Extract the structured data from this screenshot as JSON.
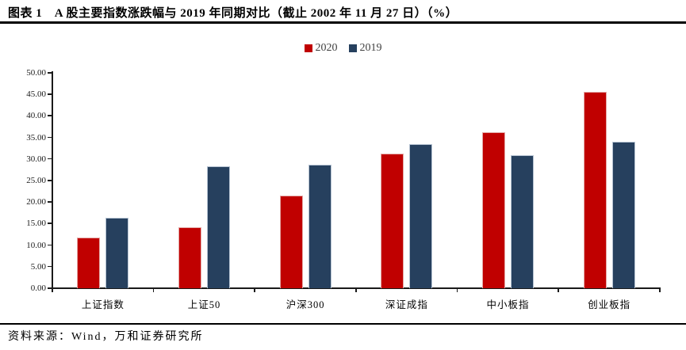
{
  "header": {
    "title": "图表 1　A 股主要指数涨跌幅与 2019 年同期对比（截止 2002 年 11 月 27 日）（%）"
  },
  "footer": {
    "source": "资料来源：Wind，万和证券研究所"
  },
  "chart_data": {
    "type": "bar",
    "title": "A股主要指数涨跌幅与2019年同期对比（%）",
    "categories": [
      "上证指数",
      "上证50",
      "沪深300",
      "深证成指",
      "中小板指",
      "创业板指"
    ],
    "series": [
      {
        "name": "2020",
        "color": "#c00000",
        "border": "#e3a8a6",
        "values": [
          11.8,
          14.2,
          21.5,
          31.3,
          36.2,
          45.6
        ]
      },
      {
        "name": "2019",
        "color": "#26405e",
        "border": "#b6c3d2",
        "values": [
          16.4,
          28.3,
          28.6,
          33.4,
          30.8,
          34.0
        ]
      }
    ],
    "ylim": [
      0,
      50
    ],
    "ytick_step": 5,
    "ytick_decimals": 2,
    "xlabel": "",
    "ylabel": "",
    "grid": false,
    "legend_position": "top-center"
  },
  "colors": {
    "axis": "#1a1a1a",
    "title_text": "#000000",
    "legend_text": "#404040",
    "background": "#ffffff"
  }
}
